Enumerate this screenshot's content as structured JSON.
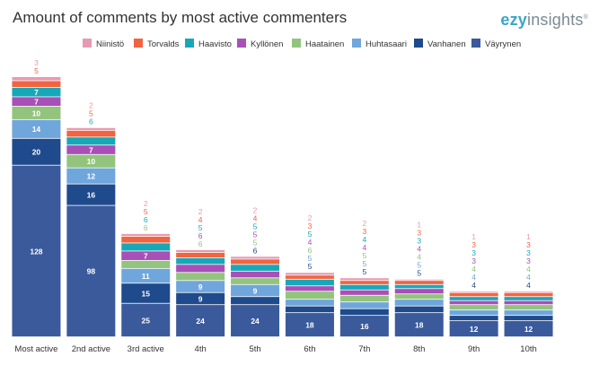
{
  "header": {
    "title": "Amount of comments by most active commenters"
  },
  "brand": {
    "part1": "ezy",
    "part2": "insights",
    "mark": "®"
  },
  "chart_data": {
    "type": "bar",
    "stacked": true,
    "title": "Amount of comments by most active commenters",
    "xlabel": "",
    "ylabel": "",
    "ylim": [
      0,
      210
    ],
    "categories": [
      "Most active",
      "2nd active",
      "3rd active",
      "4th",
      "5th",
      "6th",
      "7th",
      "8th",
      "9th",
      "10th"
    ],
    "legend": [
      "Niinistö",
      "Torvalds",
      "Haavisto",
      "Kyllönen",
      "Haatainen",
      "Huhtasaari",
      "Vanhanen",
      "Väyrynen"
    ],
    "series": [
      {
        "name": "Väyrynen",
        "color": "#3a5a9b",
        "values": [
          128,
          98,
          25,
          24,
          24,
          18,
          16,
          18,
          12,
          12
        ]
      },
      {
        "name": "Vanhanen",
        "color": "#1f4a8c",
        "values": [
          20,
          16,
          15,
          9,
          6,
          5,
          5,
          5,
          4,
          4
        ]
      },
      {
        "name": "Huhtasaari",
        "color": "#6fa6dc",
        "values": [
          14,
          12,
          11,
          9,
          9,
          5,
          5,
          5,
          4,
          4
        ]
      },
      {
        "name": "Haatainen",
        "color": "#93c47d",
        "values": [
          10,
          10,
          6,
          6,
          5,
          6,
          5,
          4,
          4,
          4
        ]
      },
      {
        "name": "Kyllönen",
        "color": "#a84fb8",
        "values": [
          7,
          7,
          7,
          6,
          5,
          4,
          4,
          4,
          3,
          3
        ]
      },
      {
        "name": "Haavisto",
        "color": "#17a8b8",
        "values": [
          7,
          6,
          6,
          5,
          5,
          5,
          4,
          3,
          3,
          3
        ]
      },
      {
        "name": "Torvalds",
        "color": "#f26440",
        "values": [
          5,
          5,
          5,
          4,
          4,
          3,
          3,
          3,
          3,
          3
        ]
      },
      {
        "name": "Niinistö",
        "color": "#e79ab1",
        "values": [
          3,
          2,
          2,
          2,
          2,
          2,
          2,
          1,
          1,
          1
        ]
      }
    ]
  }
}
